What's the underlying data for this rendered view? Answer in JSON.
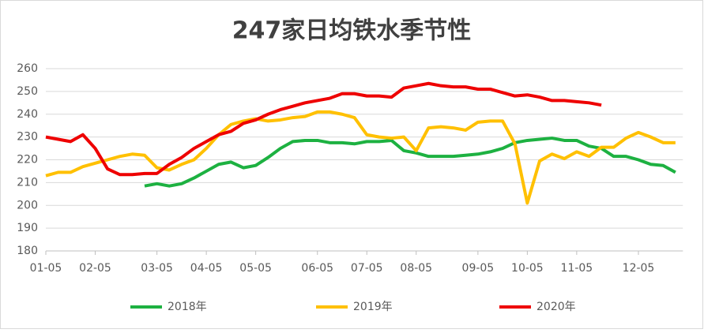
{
  "chart_data": {
    "type": "line",
    "title": "247家日均铁水季节性",
    "categories": [
      "01-05",
      null,
      null,
      null,
      "02-05",
      null,
      null,
      null,
      null,
      "03-05",
      null,
      null,
      null,
      "04-05",
      null,
      null,
      null,
      "05-05",
      null,
      null,
      null,
      null,
      "06-05",
      null,
      null,
      null,
      "07-05",
      null,
      null,
      null,
      "08-05",
      null,
      null,
      null,
      null,
      "09-05",
      null,
      null,
      null,
      "10-05",
      null,
      null,
      null,
      "11-05",
      null,
      null,
      null,
      null,
      "12-05",
      null,
      null,
      null
    ],
    "ylim": [
      180,
      260
    ],
    "yticks": [
      180,
      190,
      200,
      210,
      220,
      230,
      240,
      250,
      260
    ],
    "grid": true,
    "legend": "bottom",
    "series": [
      {
        "name": "2018年",
        "color": "#1db141",
        "values": [
          null,
          null,
          null,
          null,
          null,
          null,
          null,
          null,
          208.5,
          209.5,
          208.5,
          209.5,
          212,
          215,
          218,
          219,
          216.5,
          217.5,
          221,
          225,
          228,
          228.5,
          228.5,
          227.5,
          227.5,
          227,
          228,
          228,
          228.5,
          224,
          223,
          221.5,
          221.5,
          221.5,
          222,
          222.5,
          223.5,
          225,
          227.5,
          228.5,
          229,
          229.5,
          228.5,
          228.5,
          226,
          225,
          221.5,
          221.5,
          220,
          218,
          217.5,
          214.5
        ]
      },
      {
        "name": "2019年",
        "color": "#ffc000",
        "values": [
          213,
          214.5,
          214.5,
          217,
          218.5,
          220,
          221.5,
          222.5,
          222,
          216.5,
          215.5,
          218,
          220,
          225,
          231,
          235.5,
          237,
          238,
          237,
          237.5,
          238.5,
          239,
          241,
          241,
          240,
          238.5,
          231,
          230,
          229.5,
          230,
          224,
          234,
          234.5,
          234,
          233,
          236.5,
          237,
          237,
          227,
          201,
          219.5,
          222.5,
          220.5,
          223.5,
          221.5,
          225.5,
          225.5,
          229.5,
          232,
          230,
          227.5,
          227.5
        ]
      },
      {
        "name": "2020年",
        "color": "#ee0000",
        "values": [
          230,
          229,
          228,
          231,
          225,
          216,
          213.5,
          213.5,
          214,
          214,
          218,
          221,
          225,
          228,
          231,
          232.5,
          236,
          237.5,
          240,
          242,
          243.5,
          245,
          246,
          247,
          249,
          249,
          248,
          248,
          247.5,
          251.5,
          252.5,
          253.5,
          252.5,
          252,
          252,
          251,
          251,
          249.5,
          248,
          248.5,
          247.5,
          246,
          246,
          245.5,
          245,
          244,
          null,
          null,
          null,
          null,
          null,
          null
        ]
      }
    ]
  }
}
